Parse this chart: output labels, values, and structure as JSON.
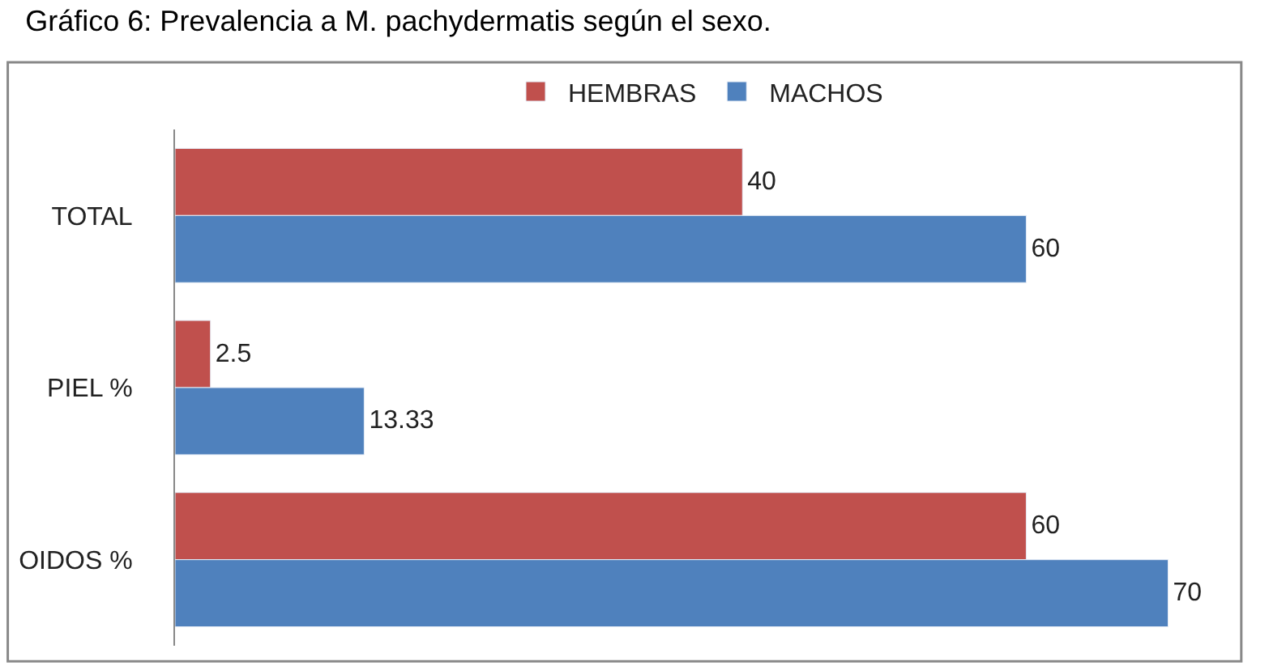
{
  "chart_data": {
    "type": "bar",
    "orientation": "horizontal",
    "title": "Gráfico 6: Prevalencia a M. pachydermatis según el sexo.",
    "categories": [
      "TOTAL",
      "PIEL %",
      "OIDOS %"
    ],
    "series": [
      {
        "name": "HEMBRAS",
        "color": "#c0504d",
        "values": [
          40,
          2.5,
          60
        ]
      },
      {
        "name": "MACHOS",
        "color": "#4f81bd",
        "values": [
          60,
          13.33,
          70
        ]
      }
    ],
    "tick_labels": "y",
    "data_labels": true,
    "legend": "top"
  }
}
